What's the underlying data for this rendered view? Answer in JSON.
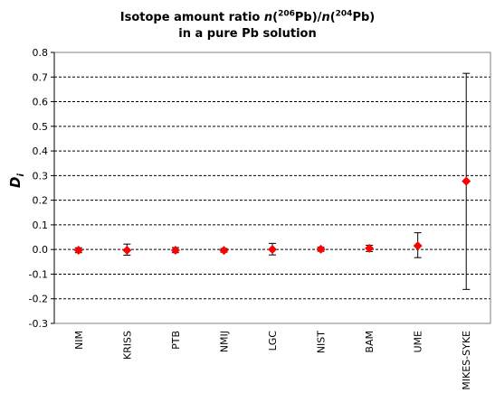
{
  "chart_data": {
    "type": "scatter",
    "title_line1_prefix": "Isotope amount ratio ",
    "title_n1": "n",
    "title_mid": "(",
    "title_sup1": "206",
    "title_pb1": "Pb)/",
    "title_n2": "n",
    "title_mid2": "(",
    "title_sup2": "204",
    "title_pb2": "Pb)",
    "title_line2": "in a pure Pb solution",
    "ylabel_main": "D",
    "ylabel_sub": "i",
    "ylim": [
      -0.3,
      0.8
    ],
    "yticks": [
      "-0.3",
      "-0.2",
      "-0.1",
      "0.0",
      "0.1",
      "0.2",
      "0.3",
      "0.4",
      "0.5",
      "0.6",
      "0.7",
      "0.8"
    ],
    "grid": "horizontal dashed",
    "categories": [
      "NIM",
      "KRISS",
      "PTB",
      "NMIJ",
      "LGC",
      "NIST",
      "BAM",
      "UME",
      "MIKES-SYKE"
    ],
    "values": [
      -0.003,
      -0.003,
      -0.003,
      -0.004,
      0.0,
      0.001,
      0.005,
      0.015,
      0.277
    ],
    "err_low": [
      -0.013,
      -0.023,
      -0.013,
      -0.011,
      -0.022,
      -0.007,
      -0.008,
      -0.033,
      -0.162
    ],
    "err_high": [
      0.007,
      0.022,
      0.008,
      0.004,
      0.025,
      0.009,
      0.017,
      0.068,
      0.715
    ],
    "marker_color": "#ff0000"
  }
}
